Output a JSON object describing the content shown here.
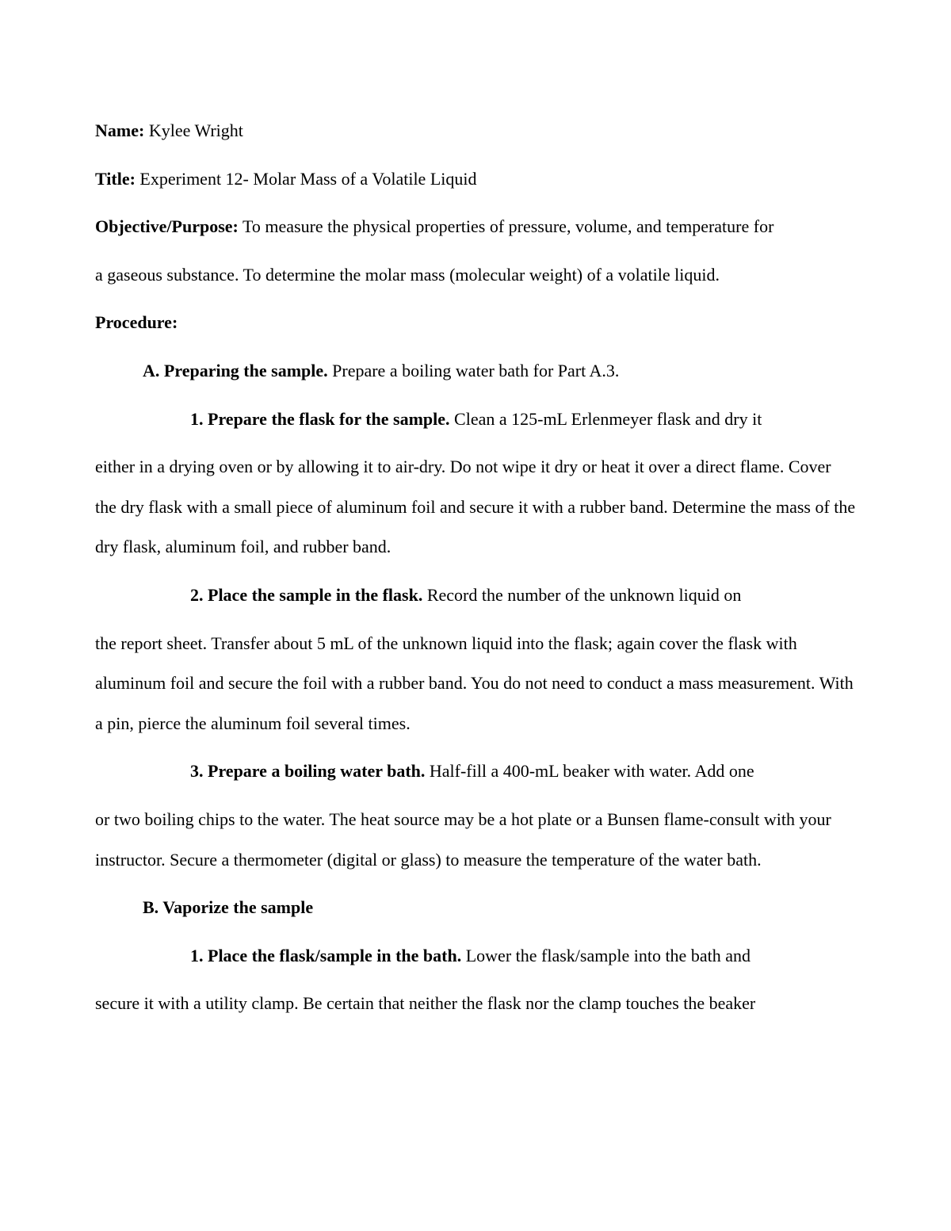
{
  "labels": {
    "name": "Name:",
    "title": "Title:",
    "objective": "Objective/Purpose:",
    "procedure": "Procedure:"
  },
  "name_value": " Kylee Wright",
  "title_value": " Experiment 12- Molar Mass of a Volatile Liquid",
  "objective_text_1": " To measure the physical properties of pressure, volume, and temperature for",
  "objective_text_2": "a gaseous substance. To determine the molar mass (molecular weight) of a volatile liquid.",
  "section_a": {
    "heading": "A. Preparing the sample.",
    "heading_tail": " Prepare a boiling water bath for Part A.3.",
    "step1_label": "1. Prepare the flask for the sample.",
    "step1_text_a": " Clean a 125-mL Erlenmeyer flask and dry it",
    "step1_text_b": "either in a drying oven or by allowing it to air-dry. Do not wipe it dry or heat it over a direct flame. Cover the dry flask with a small piece of aluminum foil and secure it with a rubber band. Determine the mass of the dry flask, aluminum foil, and rubber band.",
    "step2_label": "2. Place the sample in the flask.",
    "step2_text_a": " Record the number of the unknown liquid on",
    "step2_text_b": "the report sheet. Transfer about 5 mL of the unknown liquid into the flask; again cover the flask with aluminum foil and secure the foil with a rubber band. You do not need to conduct a mass measurement. With a pin, pierce the aluminum foil several times.",
    "step3_label": "3. Prepare a boiling water bath.",
    "step3_text_a": " Half-fill a 400-mL beaker with water. Add one",
    "step3_text_b": "or two boiling chips to the water. The heat source may be a hot plate or a Bunsen flame-consult with your instructor. Secure a thermometer (digital or glass) to measure the temperature of the water bath."
  },
  "section_b": {
    "heading": "B. Vaporize the sample",
    "step1_label": "1. Place the flask/sample in the bath.",
    "step1_text_a": " Lower the flask/sample into the bath and",
    "step1_text_b": "secure it with a utility clamp. Be certain that neither the flask nor the clamp touches the beaker"
  }
}
